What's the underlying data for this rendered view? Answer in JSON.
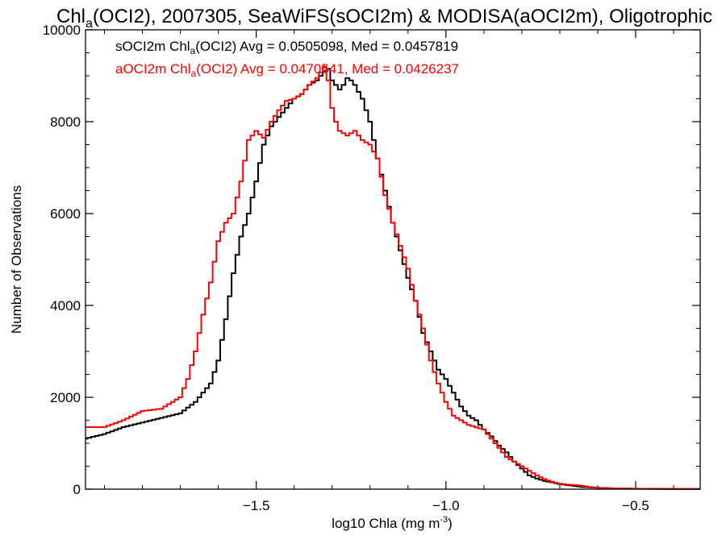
{
  "colors": {
    "series1": "#000000",
    "series2": "#ff0000",
    "axes": "#000000",
    "background": "#ffffff"
  },
  "chart_data": {
    "type": "line",
    "title": {
      "pre": "Chl",
      "sub": "a",
      "post": "(OCI2), 2007305, SeaWiFS(sOCI2m) & MODISA(aOCI2m), Oligotrophic"
    },
    "xlabel": {
      "pre": "log10 Chla (mg m",
      "sup": "-3",
      "post": ")"
    },
    "ylabel": "Number of Observations",
    "xlim": [
      -1.95,
      -0.33
    ],
    "ylim": [
      0,
      10000
    ],
    "xticks": [
      {
        "value": -1.5,
        "label": "−1.5"
      },
      {
        "value": -1.0,
        "label": "−1.0"
      },
      {
        "value": -0.5,
        "label": "−0.5"
      }
    ],
    "yticks": [
      {
        "value": 0,
        "label": "0"
      },
      {
        "value": 2000,
        "label": "2000"
      },
      {
        "value": 4000,
        "label": "4000"
      },
      {
        "value": 6000,
        "label": "6000"
      },
      {
        "value": 8000,
        "label": "8000"
      },
      {
        "value": 10000,
        "label": "10000"
      }
    ],
    "grid": false,
    "legend_placement": "top-left",
    "bin_width": 0.01,
    "series": [
      {
        "name": "sOCI2m",
        "color": "#000000",
        "legend": {
          "pre": "sOCI2m Chl",
          "sub": "a",
          "post": "(OCI2) Avg = 0.0505098, Med = 0.0457819"
        },
        "x": [
          -1.95,
          -1.9,
          -1.85,
          -1.8,
          -1.75,
          -1.7,
          -1.66,
          -1.62,
          -1.6,
          -1.58,
          -1.56,
          -1.54,
          -1.52,
          -1.5,
          -1.48,
          -1.46,
          -1.44,
          -1.42,
          -1.4,
          -1.38,
          -1.36,
          -1.34,
          -1.33,
          -1.32,
          -1.31,
          -1.3,
          -1.29,
          -1.28,
          -1.27,
          -1.26,
          -1.25,
          -1.24,
          -1.22,
          -1.2,
          -1.18,
          -1.16,
          -1.14,
          -1.12,
          -1.1,
          -1.08,
          -1.06,
          -1.04,
          -1.02,
          -1.0,
          -0.98,
          -0.96,
          -0.94,
          -0.92,
          -0.9,
          -0.88,
          -0.86,
          -0.84,
          -0.82,
          -0.8,
          -0.78,
          -0.76,
          -0.74,
          -0.72,
          -0.7,
          -0.68,
          -0.66,
          -0.64,
          -0.62,
          -0.6,
          -0.55,
          -0.5,
          -0.45,
          -0.4,
          -0.33
        ],
        "y": [
          1100,
          1200,
          1350,
          1450,
          1550,
          1650,
          1900,
          2300,
          2800,
          3700,
          4700,
          5500,
          6000,
          6700,
          7500,
          7900,
          8100,
          8300,
          8500,
          8600,
          8800,
          8900,
          9000,
          9100,
          9150,
          8900,
          8800,
          8700,
          8800,
          8950,
          8900,
          8800,
          8500,
          8000,
          7200,
          6500,
          5800,
          5200,
          4600,
          4100,
          3400,
          3000,
          2600,
          2400,
          2100,
          1800,
          1600,
          1500,
          1300,
          1150,
          950,
          800,
          600,
          450,
          300,
          230,
          180,
          150,
          110,
          90,
          70,
          50,
          40,
          30,
          15,
          10,
          8,
          5,
          5
        ]
      },
      {
        "name": "aOCI2m",
        "color": "#ff0000",
        "legend": {
          "pre": "aOCI2m Chl",
          "sub": "a",
          "post": "(OCI2) Avg = 0.0470541, Med = 0.0426237"
        },
        "x": [
          -1.95,
          -1.9,
          -1.85,
          -1.8,
          -1.75,
          -1.7,
          -1.68,
          -1.66,
          -1.64,
          -1.62,
          -1.6,
          -1.58,
          -1.56,
          -1.54,
          -1.52,
          -1.5,
          -1.48,
          -1.46,
          -1.44,
          -1.42,
          -1.4,
          -1.38,
          -1.36,
          -1.34,
          -1.32,
          -1.31,
          -1.3,
          -1.29,
          -1.28,
          -1.26,
          -1.24,
          -1.22,
          -1.2,
          -1.18,
          -1.16,
          -1.14,
          -1.12,
          -1.1,
          -1.08,
          -1.06,
          -1.04,
          -1.02,
          -1.0,
          -0.98,
          -0.96,
          -0.94,
          -0.92,
          -0.9,
          -0.88,
          -0.86,
          -0.84,
          -0.82,
          -0.8,
          -0.78,
          -0.76,
          -0.74,
          -0.72,
          -0.7,
          -0.68,
          -0.66,
          -0.64,
          -0.62,
          -0.6,
          -0.55,
          -0.5,
          -0.45,
          -0.4,
          -0.33
        ],
        "y": [
          1350,
          1350,
          1500,
          1700,
          1750,
          2000,
          2400,
          3000,
          3800,
          4500,
          5400,
          5800,
          6000,
          6700,
          7600,
          7800,
          7650,
          8000,
          8250,
          8450,
          8500,
          8600,
          8800,
          8950,
          9200,
          8900,
          8300,
          8000,
          7800,
          7700,
          7800,
          7600,
          7500,
          7200,
          6400,
          5800,
          5300,
          4800,
          4100,
          3500,
          2800,
          2300,
          1900,
          1600,
          1500,
          1400,
          1350,
          1300,
          1100,
          900,
          700,
          600,
          500,
          400,
          300,
          220,
          160,
          120,
          100,
          90,
          70,
          50,
          30,
          15,
          10,
          5,
          5,
          5
        ]
      }
    ]
  }
}
